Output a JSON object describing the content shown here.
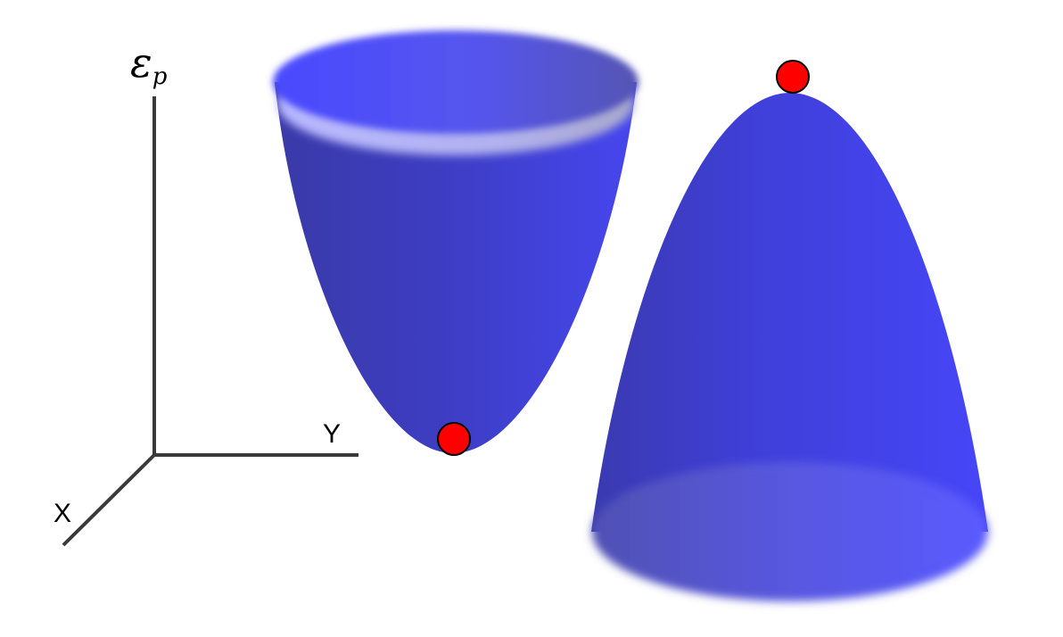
{
  "axes": {
    "vertical_symbol": "ε",
    "vertical_subscript": "p",
    "y_label": "Y",
    "x_label": "X"
  },
  "surfaces": [
    {
      "name": "bowl",
      "shape": "upward paraboloid",
      "ball": "minimum"
    },
    {
      "name": "dome",
      "shape": "downward paraboloid",
      "ball": "maximum"
    }
  ],
  "colors": {
    "surface_dark": "#3c3cb0",
    "surface_bright": "#4545f0",
    "rim_light": "#b0b0ee",
    "ball": "#ff0000",
    "axis_line": "#3a3a3a"
  }
}
